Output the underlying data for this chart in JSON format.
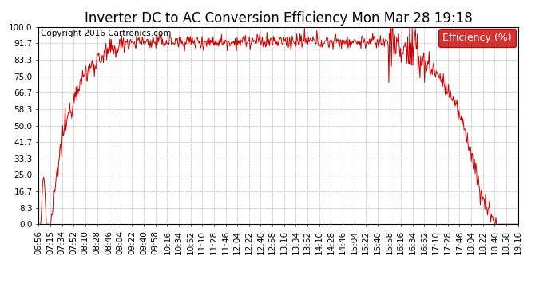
{
  "title": "Inverter DC to AC Conversion Efficiency Mon Mar 28 19:18",
  "copyright": "Copyright 2016 Cartronics.com",
  "legend_label": "Efficiency (%)",
  "legend_bg": "#cc0000",
  "legend_fg": "#ffffff",
  "line_color": "#cc0000",
  "background_color": "#ffffff",
  "grid_color": "#bbbbbb",
  "ylim": [
    0,
    100
  ],
  "yticks": [
    0.0,
    8.3,
    16.7,
    25.0,
    33.3,
    41.7,
    50.0,
    58.3,
    66.7,
    75.0,
    83.3,
    91.7,
    100.0
  ],
  "ytick_labels": [
    "0.0",
    "8.3",
    "16.7",
    "25.0",
    "33.3",
    "41.7",
    "50.0",
    "58.3",
    "66.7",
    "75.0",
    "83.3",
    "91.7",
    "100.0"
  ],
  "xtick_labels": [
    "06:56",
    "07:15",
    "07:34",
    "07:52",
    "08:10",
    "08:28",
    "08:46",
    "09:04",
    "09:22",
    "09:40",
    "09:58",
    "10:16",
    "10:34",
    "10:52",
    "11:10",
    "11:28",
    "11:46",
    "12:04",
    "12:22",
    "12:40",
    "12:58",
    "13:16",
    "13:34",
    "13:52",
    "14:10",
    "14:28",
    "14:46",
    "15:04",
    "15:22",
    "15:40",
    "15:58",
    "16:16",
    "16:34",
    "16:52",
    "17:10",
    "17:28",
    "17:46",
    "18:04",
    "18:22",
    "18:40",
    "18:58",
    "19:16"
  ],
  "title_fontsize": 12,
  "copyright_fontsize": 7.5,
  "tick_fontsize": 7.5,
  "legend_fontsize": 9
}
